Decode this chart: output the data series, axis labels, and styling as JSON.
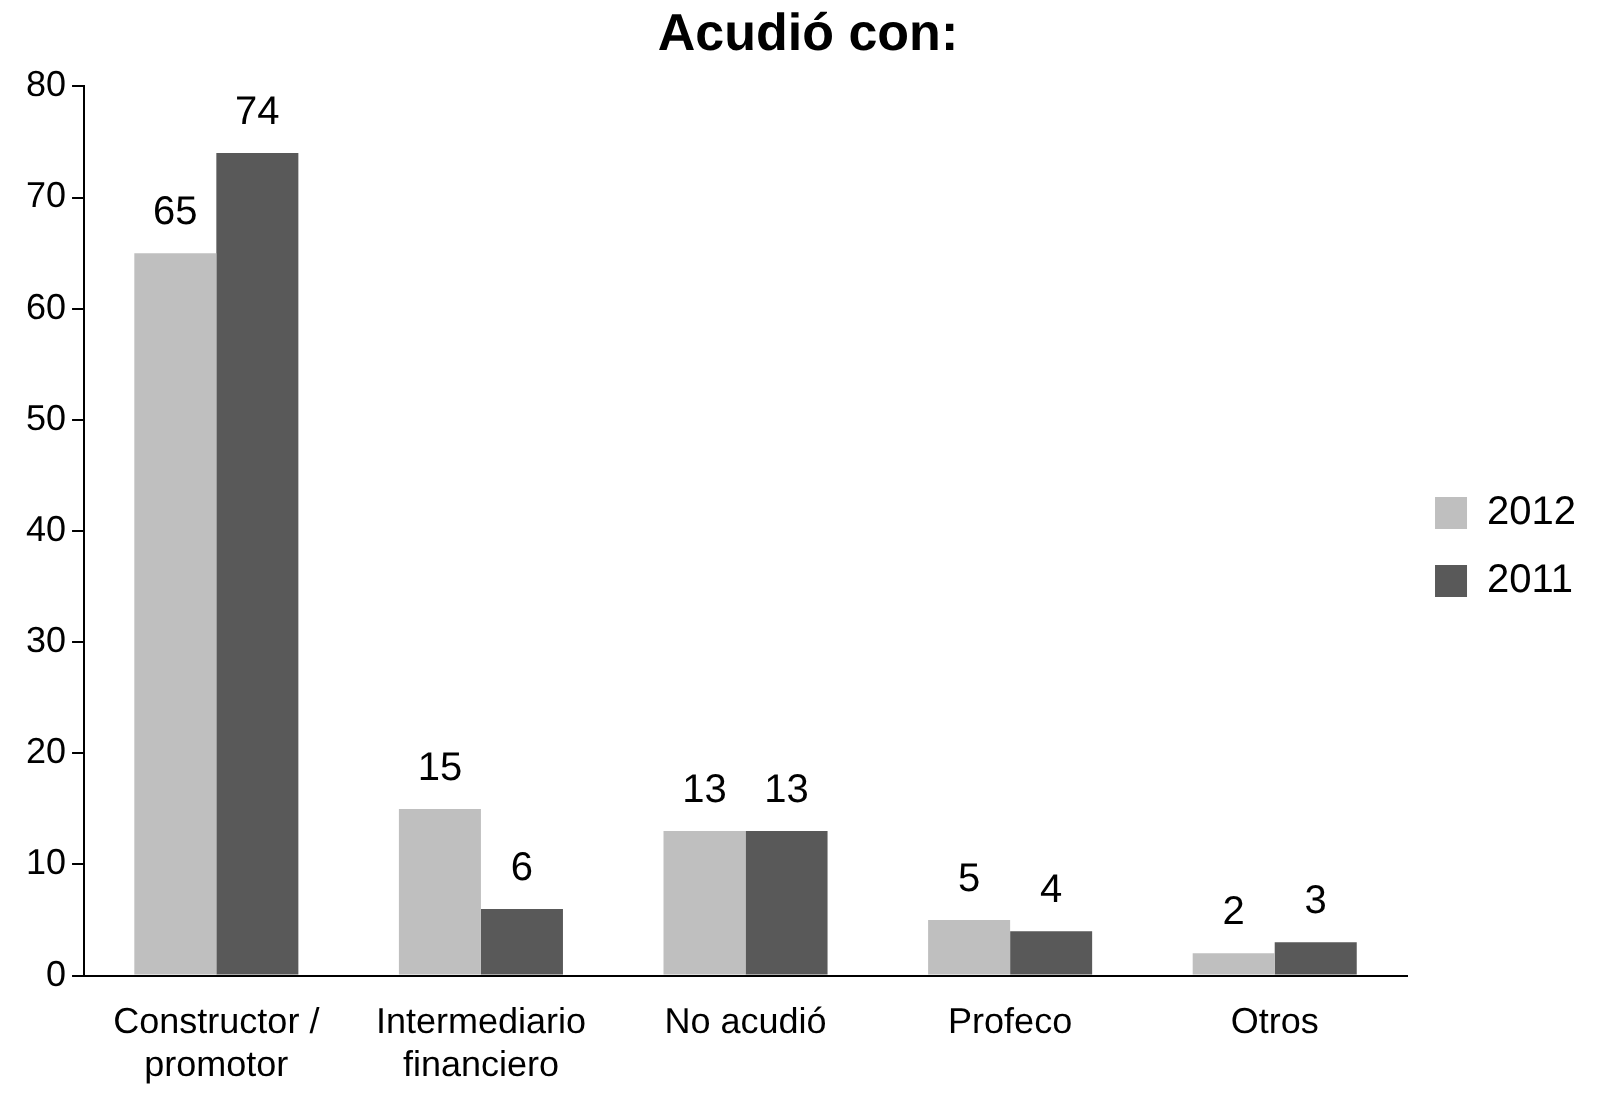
{
  "chart_data": {
    "type": "bar",
    "title": "Acudió con:",
    "categories": [
      "Constructor / promotor",
      "Intermediario financiero",
      "No acudió",
      "Profeco",
      "Otros"
    ],
    "series": [
      {
        "name": "2012",
        "color": "#bfbfbf",
        "values": [
          65,
          15,
          13,
          5,
          2
        ]
      },
      {
        "name": "2011",
        "color": "#595959",
        "values": [
          74,
          6,
          13,
          4,
          3
        ]
      }
    ],
    "ylim": [
      0,
      80
    ],
    "yticks": [
      0,
      10,
      20,
      30,
      40,
      50,
      60,
      70,
      80
    ],
    "grid": false,
    "legend": "right",
    "data_labels": true
  }
}
